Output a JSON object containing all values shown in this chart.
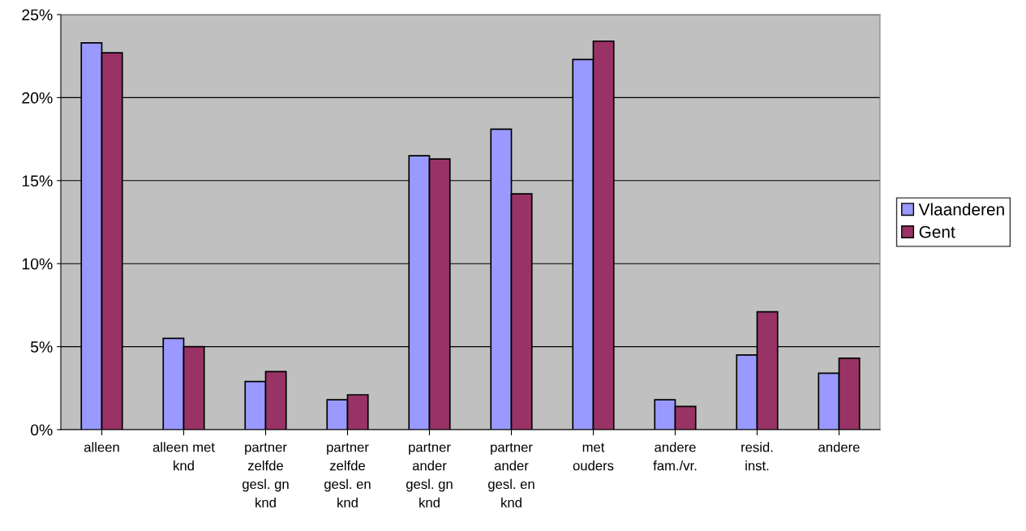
{
  "chart_data": {
    "type": "bar",
    "categories": [
      "alleen",
      "alleen met\nknd",
      "partner\nzelfde\ngesl. gn\nknd",
      "partner\nzelfde\ngesl. en\nknd",
      "partner\nander\ngesl. gn\nknd",
      "partner\nander\ngesl. en\nknd",
      "met\nouders",
      "andere\nfam./vr.",
      "resid.\ninst.",
      "andere"
    ],
    "series": [
      {
        "name": "Vlaanderen",
        "color": "#9999ff",
        "values": [
          23.3,
          5.5,
          2.9,
          1.8,
          16.5,
          18.1,
          22.3,
          1.8,
          4.5,
          3.4
        ]
      },
      {
        "name": "Gent",
        "color": "#993366",
        "values": [
          22.7,
          5.0,
          3.5,
          2.1,
          16.3,
          14.2,
          23.4,
          1.4,
          7.1,
          4.3
        ]
      }
    ],
    "ylim": [
      0,
      25
    ],
    "yticks": [
      {
        "value": 0,
        "label": "0%"
      },
      {
        "value": 5,
        "label": "5%"
      },
      {
        "value": 10,
        "label": "10%"
      },
      {
        "value": 15,
        "label": "15%"
      },
      {
        "value": 20,
        "label": "20%"
      },
      {
        "value": 25,
        "label": "25%"
      }
    ],
    "grid": "y",
    "legend": "right"
  }
}
